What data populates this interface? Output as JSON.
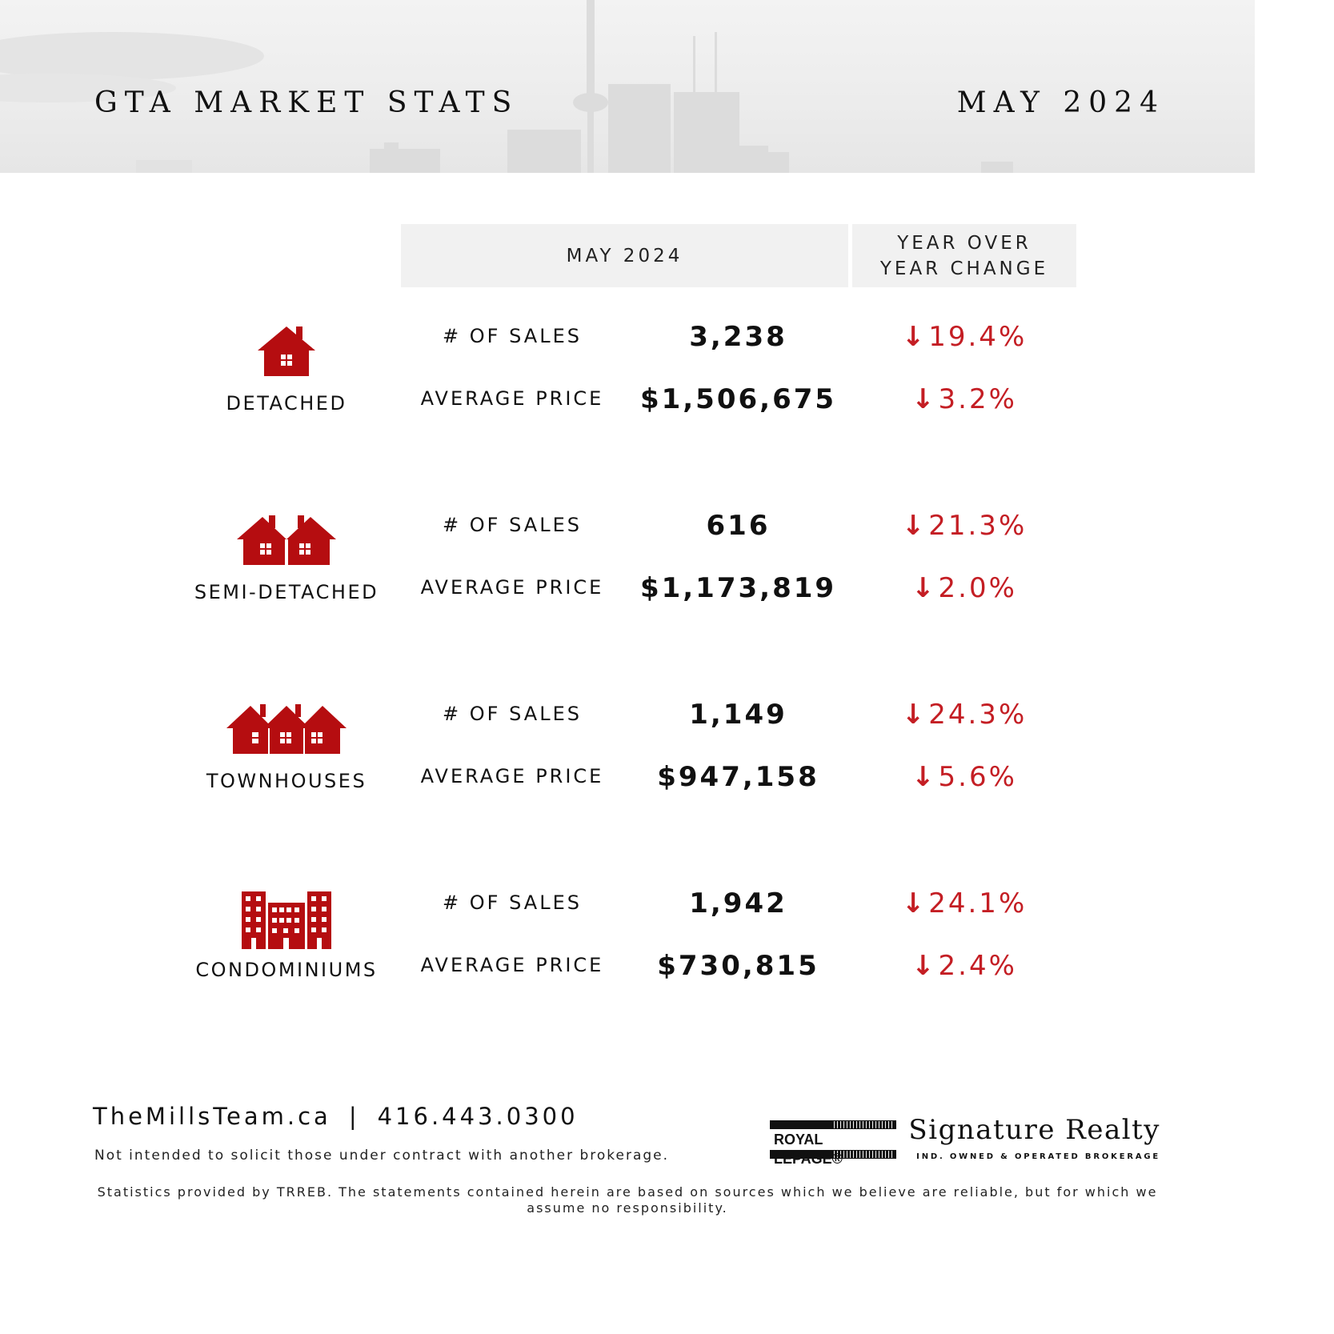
{
  "header": {
    "title": "GTA MARKET STATS",
    "date": "MAY 2024"
  },
  "columns": {
    "month": "MAY 2024",
    "yoy_line1": "YEAR OVER",
    "yoy_line2": "YEAR CHANGE"
  },
  "metric_labels": {
    "sales": "# OF SALES",
    "price": "AVERAGE PRICE"
  },
  "sections": [
    {
      "type": "DETACHED",
      "icon": "house-icon",
      "sales": "3,238",
      "sales_change": "19.4%",
      "price": "$1,506,675",
      "price_change": "3.2%"
    },
    {
      "type": "SEMI-DETACHED",
      "icon": "semi-detached-icon",
      "sales": "616",
      "sales_change": "21.3%",
      "price": "$1,173,819",
      "price_change": "2.0%"
    },
    {
      "type": "TOWNHOUSES",
      "icon": "townhouses-icon",
      "sales": "1,149",
      "sales_change": "24.3%",
      "price": "$947,158",
      "price_change": "5.6%"
    },
    {
      "type": "CONDOMINIUMS",
      "icon": "condo-building-icon",
      "sales": "1,942",
      "sales_change": "24.1%",
      "price": "$730,815",
      "price_change": "2.4%"
    }
  ],
  "change_arrow": "↓",
  "colors": {
    "accent": "#c41e24",
    "icon": "#b50d10",
    "header_bg": "#ececec",
    "column_header_bg": "#f1f1f1"
  },
  "footer": {
    "website": "TheMillsTeam.ca",
    "separator": "|",
    "phone": "416.443.0300",
    "disclaimer": "Not intended to solicit those under contract with another brokerage.",
    "stats_note": "Statistics provided by TRREB. The statements contained herein are based on sources which we believe are reliable, but for which we assume no responsibility.",
    "brand_logo": "ROYAL LEPAGE®",
    "brokerage_name": "Signature Realty",
    "brokerage_tagline": "IND. OWNED & OPERATED BROKERAGE"
  }
}
